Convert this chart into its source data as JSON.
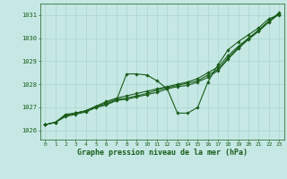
{
  "title": "Graphe pression niveau de la mer (hPa)",
  "ylabel_ticks": [
    1026,
    1027,
    1028,
    1029,
    1030,
    1031
  ],
  "xlim": [
    -0.5,
    23.5
  ],
  "ylim": [
    1025.6,
    1031.5
  ],
  "bg_color": "#c5e8e4",
  "grid_color": "#aad4d0",
  "line_color": "#1a5c1a",
  "marker": "D",
  "markersize": 1.8,
  "linewidth": 0.8,
  "series": [
    [
      1026.25,
      1026.35,
      1026.6,
      1026.7,
      1026.8,
      1027.0,
      1027.1,
      1027.3,
      1028.45,
      1028.45,
      1028.4,
      1028.15,
      1027.8,
      1026.75,
      1026.75,
      1027.0,
      1028.1,
      1028.85,
      1029.5,
      1029.85,
      1030.15,
      1030.45,
      1030.85,
      1031.0
    ],
    [
      1026.25,
      1026.35,
      1026.65,
      1026.75,
      1026.85,
      1027.0,
      1027.15,
      1027.3,
      1027.35,
      1027.45,
      1027.55,
      1027.65,
      1027.8,
      1027.9,
      1027.95,
      1028.1,
      1028.3,
      1028.6,
      1029.1,
      1029.55,
      1029.95,
      1030.3,
      1030.7,
      1031.05
    ],
    [
      1026.25,
      1026.35,
      1026.65,
      1026.75,
      1026.85,
      1027.05,
      1027.2,
      1027.35,
      1027.4,
      1027.5,
      1027.6,
      1027.75,
      1027.85,
      1027.95,
      1028.05,
      1028.15,
      1028.4,
      1028.65,
      1029.15,
      1029.6,
      1030.0,
      1030.35,
      1030.75,
      1031.1
    ],
    [
      1026.25,
      1026.35,
      1026.7,
      1026.75,
      1026.85,
      1027.05,
      1027.25,
      1027.4,
      1027.5,
      1027.6,
      1027.7,
      1027.8,
      1027.9,
      1028.0,
      1028.1,
      1028.25,
      1028.5,
      1028.75,
      1029.25,
      1029.65,
      1030.0,
      1030.35,
      1030.72,
      1031.05
    ]
  ]
}
